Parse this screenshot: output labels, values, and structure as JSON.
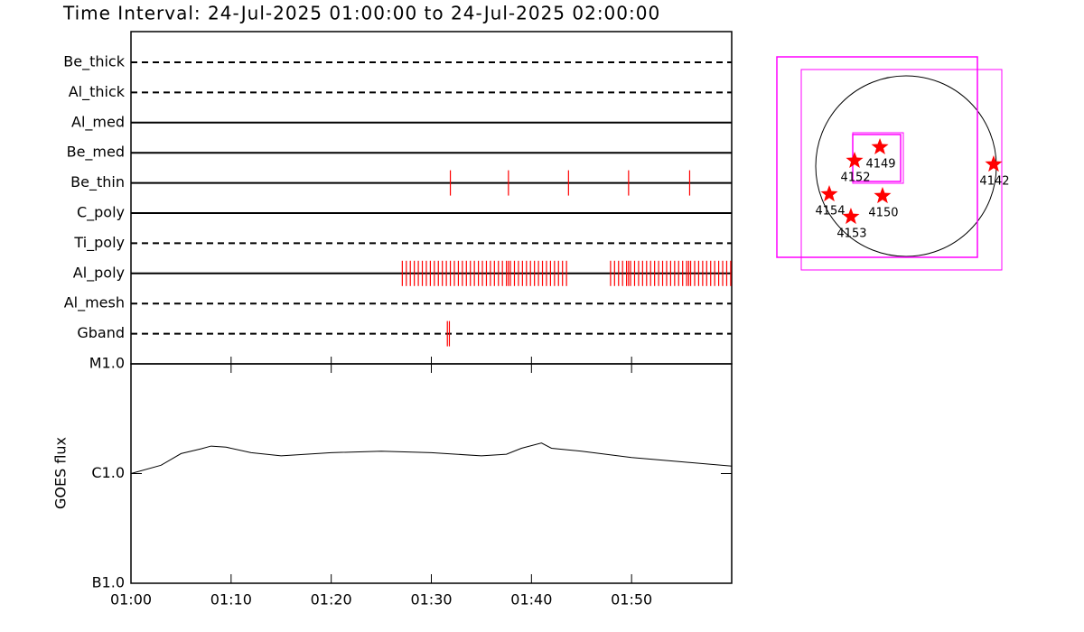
{
  "title": "Time Interval: 24-Jul-2025 01:00:00 to 24-Jul-2025 02:00:00",
  "chart_data": [
    {
      "type": "timeline",
      "categories": [
        "Be_thick",
        "Al_thick",
        "Al_med",
        "Be_med",
        "Be_thin",
        "C_poly",
        "Ti_poly",
        "Al_poly",
        "Al_mesh",
        "Gband"
      ],
      "line_styles": [
        "dashed",
        "dashed",
        "solid",
        "solid",
        "solid",
        "solid",
        "dashed",
        "solid",
        "dashed",
        "dashed"
      ],
      "color": "#ff0000",
      "xlim": [
        0,
        60
      ],
      "events": [
        [],
        [],
        [],
        [],
        [
          31.9,
          37.7,
          43.7,
          49.7,
          55.8
        ],
        [],
        [],
        [
          27.1,
          27.5,
          27.9,
          28.3,
          28.7,
          29.1,
          29.5,
          29.9,
          30.3,
          30.7,
          31.1,
          31.5,
          31.9,
          32.3,
          32.7,
          33.1,
          33.5,
          33.9,
          34.3,
          34.7,
          35.1,
          35.5,
          35.9,
          36.3,
          36.7,
          37.1,
          37.5,
          37.7,
          37.9,
          38.3,
          38.7,
          39.1,
          39.5,
          39.9,
          40.3,
          40.7,
          41.1,
          41.5,
          41.9,
          42.3,
          42.7,
          43.1,
          43.5,
          47.9,
          48.3,
          48.7,
          49.1,
          49.5,
          49.7,
          49.9,
          50.3,
          50.7,
          51.1,
          51.5,
          51.9,
          52.3,
          52.7,
          53.1,
          53.5,
          53.9,
          54.3,
          54.7,
          55.1,
          55.5,
          55.7,
          55.9,
          56.3,
          56.7,
          57.1,
          57.5,
          57.9,
          58.3,
          58.7,
          59.1,
          59.5,
          59.9
        ],
        [],
        [
          31.6,
          31.8
        ]
      ]
    },
    {
      "type": "line",
      "y_label": "GOES flux",
      "log_scale": true,
      "color": "#000000",
      "x": [
        0,
        3,
        5,
        7,
        8,
        9.5,
        12,
        15,
        20,
        25,
        30,
        35,
        37.5,
        39,
        41,
        42,
        45,
        50,
        55,
        60
      ],
      "values": [
        1e-06,
        1.19e-06,
        1.52e-06,
        1.68e-06,
        1.78e-06,
        1.74e-06,
        1.55e-06,
        1.45e-06,
        1.55e-06,
        1.6e-06,
        1.55e-06,
        1.45e-06,
        1.5e-06,
        1.7e-06,
        1.9e-06,
        1.7e-06,
        1.6e-06,
        1.4e-06,
        1.28e-06,
        1.17e-06
      ],
      "xlim": [
        0,
        60
      ],
      "xticks": [
        {
          "value": 0,
          "label": "01:00"
        },
        {
          "value": 10,
          "label": "01:10"
        },
        {
          "value": 20,
          "label": "01:20"
        },
        {
          "value": 30,
          "label": "01:30"
        },
        {
          "value": 40,
          "label": "01:40"
        },
        {
          "value": 50,
          "label": "01:50"
        }
      ],
      "ylim": [
        1e-07,
        1e-05
      ],
      "yticks": [
        {
          "value": 1e-07,
          "label": "B1.0"
        },
        {
          "value": 1e-06,
          "label": "C1.0"
        },
        {
          "value": 1e-05,
          "label": "M1.0"
        }
      ]
    },
    {
      "type": "scatter",
      "color": "#ff0000",
      "labels": [
        "4149",
        "4152",
        "4142",
        "4154",
        "4150",
        "4153"
      ],
      "x": [
        -278,
        -547,
        931,
        -816,
        -250,
        -586
      ],
      "values": [
        202,
        58,
        19,
        -298,
        -317,
        -538
      ]
    }
  ]
}
